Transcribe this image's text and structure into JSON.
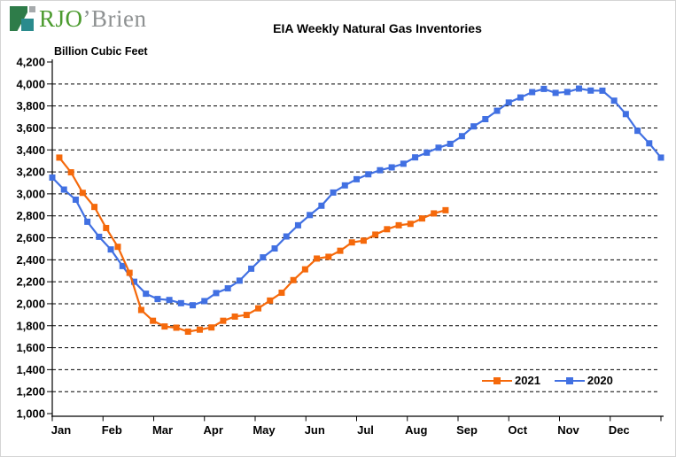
{
  "logo": {
    "text_primary": "RJO",
    "text_secondary": "’Brien",
    "primary_color": "#4C9B2F",
    "secondary_color": "#8E9192",
    "icon": {
      "green": "#2E7C49",
      "teal": "#2A8B8D",
      "gray": "#A6AAAC"
    }
  },
  "chart_data": {
    "type": "line",
    "title": "EIA Weekly Natural Gas Inventories",
    "ylabel": "Billion Cubic Feet",
    "ylim": [
      1000,
      4200
    ],
    "ytick_step": 200,
    "ytick_labels": [
      "4,200",
      "4,000",
      "3,800",
      "3,600",
      "3,400",
      "3,200",
      "3,000",
      "2,800",
      "2,600",
      "2,400",
      "2,200",
      "2,000",
      "1,800",
      "1,600",
      "1,400",
      "1,200",
      "1,000"
    ],
    "x_months": [
      "Jan",
      "Feb",
      "Mar",
      "Apr",
      "May",
      "Jun",
      "Jul",
      "Aug",
      "Sep",
      "Oct",
      "Nov",
      "Dec"
    ],
    "x_weeks_per_year": 52,
    "grid": "horizontal-dashed",
    "legend_position": "inside-bottom-right",
    "series": [
      {
        "name": "2021",
        "color": "#F5690B",
        "marker": "square",
        "x_offset_weeks": 0.6,
        "values": [
          3330,
          3196,
          3009,
          2881,
          2689,
          2518,
          2281,
          1943,
          1845,
          1793,
          1782,
          1746,
          1764,
          1784,
          1845,
          1883,
          1898,
          1958,
          2029,
          2100,
          2215,
          2313,
          2411,
          2427,
          2482,
          2558,
          2574,
          2629,
          2678,
          2714,
          2727,
          2776,
          2822,
          2851
        ]
      },
      {
        "name": "2020",
        "color": "#4170E2",
        "marker": "square",
        "x_offset_weeks": 0,
        "values": [
          3148,
          3039,
          2947,
          2746,
          2609,
          2494,
          2343,
          2200,
          2091,
          2043,
          2034,
          2005,
          1986,
          2024,
          2097,
          2140,
          2210,
          2319,
          2422,
          2503,
          2612,
          2714,
          2807,
          2892,
          3012,
          3077,
          3133,
          3178,
          3215,
          3241,
          3274,
          3332,
          3375,
          3420,
          3455,
          3525,
          3614,
          3680,
          3756,
          3831,
          3877,
          3926,
          3955,
          3919,
          3927,
          3958,
          3940,
          3939,
          3848,
          3726,
          3574,
          3460,
          3330
        ]
      }
    ]
  }
}
